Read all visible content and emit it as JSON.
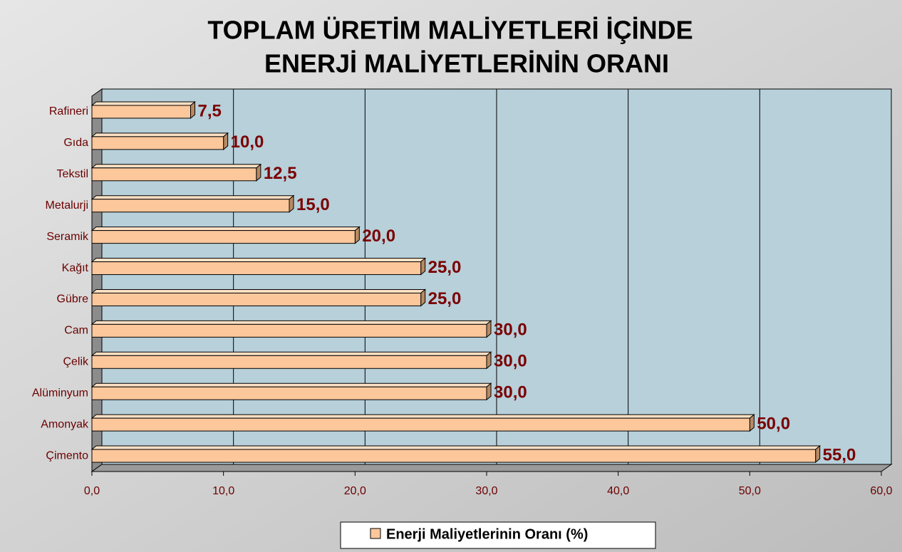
{
  "chart_data": {
    "type": "bar",
    "orientation": "horizontal",
    "title": [
      "TOPLAM ÜRETİM MALİYETLERİ İÇİNDE",
      "ENERJİ MALİYETLERİNİN ORANI"
    ],
    "categories": [
      "Rafineri",
      "Gıda",
      "Tekstil",
      "Metalurji",
      "Seramik",
      "Kağıt",
      "Gübre",
      "Cam",
      "Çelik",
      "Alüminyum",
      "Amonyak",
      "Çimento"
    ],
    "series": [
      {
        "name": "Enerji Maliyetlerinin Oranı (%)",
        "color": "#fcc79b",
        "values": [
          7.5,
          10,
          12.5,
          15,
          20,
          25,
          25,
          30,
          30,
          30,
          50,
          55
        ],
        "value_labels": [
          "7,5",
          "10,0",
          "12,5",
          "15,0",
          "20,0",
          "25,0",
          "25,0",
          "30,0",
          "30,0",
          "30,0",
          "50,0",
          "55,0"
        ]
      }
    ],
    "xlim": [
      0,
      60
    ],
    "xticks": [
      {
        "value": 0,
        "label": "0,0"
      },
      {
        "value": 10,
        "label": "10,0"
      },
      {
        "value": 20,
        "label": "20,0"
      },
      {
        "value": 30,
        "label": "30,0"
      },
      {
        "value": 40,
        "label": "40,0"
      },
      {
        "value": 50,
        "label": "50,0"
      },
      {
        "value": 60,
        "label": "60,0"
      }
    ],
    "grid": true,
    "legend": "bottom"
  }
}
